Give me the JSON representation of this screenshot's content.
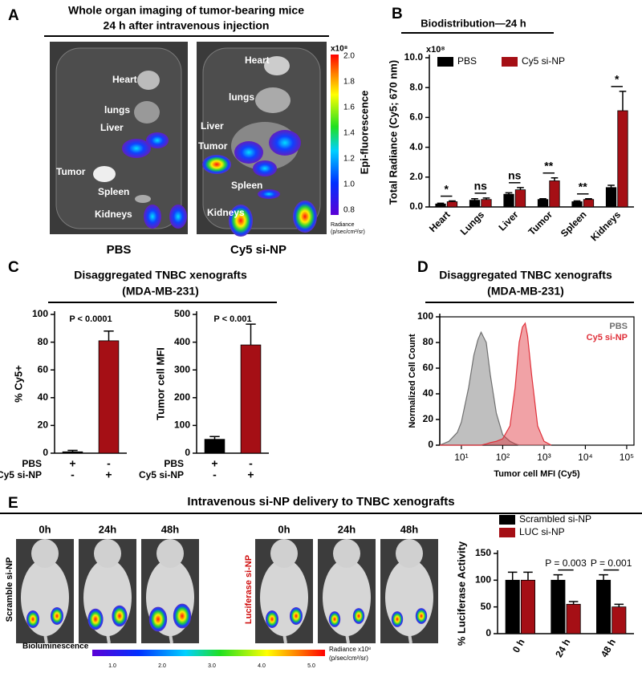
{
  "panel_letters": [
    "A",
    "B",
    "C",
    "D",
    "E"
  ],
  "panel_a": {
    "title": [
      "Whole organ imaging of tumor-bearing mice",
      "24 h after intravenous injection"
    ],
    "images": [
      {
        "caption": "PBS",
        "organs": [
          "Heart",
          "lungs",
          "Liver",
          "Tumor",
          "Spleen",
          "Kidneys"
        ]
      },
      {
        "caption": "Cy5 si-NP",
        "organs": [
          "Heart",
          "lungs",
          "Liver",
          "Tumor",
          "Spleen",
          "Kidneys"
        ]
      }
    ],
    "colorbar": {
      "unit": "x10⁸",
      "ticks": [
        "2.0",
        "1.8",
        "1.6",
        "1.4",
        "1.2",
        "1.0",
        "0.8"
      ],
      "label": "Epi-fluorescence",
      "radiance": [
        "Radiance",
        "(p/sec/cm²/sr)"
      ]
    }
  },
  "panel_c": {
    "title": "Disaggregated TNBC xenografts",
    "subtitle": "(MDA-MB-231)"
  },
  "panel_e": {
    "title": "Intravenous si-NP delivery to TNBC xenografts",
    "groups": [
      {
        "label": "Scramble si-NP",
        "times": [
          "0h",
          "24h",
          "48h"
        ]
      },
      {
        "label": "Luciferase si-NP",
        "times": [
          "0h",
          "24h",
          "48h"
        ]
      }
    ],
    "colorbar": {
      "label": "Bioluminescence",
      "ticks": [
        "1.0",
        "2.0",
        "3.0",
        "4.0",
        "5.0"
      ],
      "radiance": [
        "Radiance x10⁸",
        "(p/sec/cm²/sr)"
      ]
    }
  },
  "chart_data": [
    {
      "type": "bar",
      "title": "Biodistribution—24 h",
      "ylabel": "Total Radiance (Cy5; 670 nm)",
      "y_multiplier": "x10⁸",
      "categories": [
        "Heart",
        "Lungs",
        "Liver",
        "Tumor",
        "Spleen",
        "Kidneys"
      ],
      "series": [
        {
          "name": "PBS",
          "color": "#000000",
          "values": [
            0.2,
            0.45,
            0.85,
            0.5,
            0.35,
            1.3
          ],
          "errors": [
            0.05,
            0.1,
            0.1,
            0.05,
            0.05,
            0.15
          ]
        },
        {
          "name": "Cy5 si-NP",
          "color": "#a50f15",
          "values": [
            0.35,
            0.5,
            1.15,
            1.75,
            0.5,
            6.45
          ],
          "errors": [
            0.05,
            0.1,
            0.15,
            0.2,
            0.05,
            1.3
          ]
        }
      ],
      "annotations": [
        "*",
        "ns",
        "ns",
        "**",
        "**",
        "*"
      ],
      "ylim": [
        0,
        10
      ],
      "yticks": [
        {
          "value": 0,
          "label": "0.0"
        },
        {
          "value": 2,
          "label": "2.0"
        },
        {
          "value": 4,
          "label": "4.0"
        },
        {
          "value": 6,
          "label": "6.0"
        },
        {
          "value": 8,
          "label": "8.0"
        },
        {
          "value": 10,
          "label": "10.0"
        }
      ],
      "legend": "top"
    },
    {
      "type": "bar",
      "ylabel": "% Cy5+",
      "category_rows": [
        {
          "name": "PBS",
          "labels": [
            "+",
            "-"
          ]
        },
        {
          "name": "Cy5 si-NP",
          "labels": [
            "-",
            "+"
          ]
        }
      ],
      "values": [
        1,
        81
      ],
      "errors": [
        1,
        7
      ],
      "colors": [
        "#000000",
        "#a50f15"
      ],
      "annotation": "P < 0.0001",
      "ylim": [
        0,
        100
      ],
      "yticks": [
        0,
        20,
        40,
        60,
        80,
        100
      ]
    },
    {
      "type": "bar",
      "ylabel": "Tumor cell MFI",
      "category_rows": [
        {
          "name": "PBS",
          "labels": [
            "+",
            "-"
          ]
        },
        {
          "name": "Cy5 si-NP",
          "labels": [
            "-",
            "+"
          ]
        }
      ],
      "values": [
        50,
        390
      ],
      "errors": [
        10,
        75
      ],
      "colors": [
        "#000000",
        "#a50f15"
      ],
      "annotation": "P < 0.001",
      "ylim": [
        0,
        500
      ],
      "yticks": [
        0,
        100,
        200,
        300,
        400,
        500
      ]
    },
    {
      "type": "line",
      "title": "Disaggregated TNBC xenografts",
      "subtitle": "(MDA-MB-231)",
      "xlabel": "Tumor cell MFI (Cy5)",
      "ylabel": "Normalized Cell Count",
      "x": [
        3,
        5,
        8,
        10,
        15,
        20,
        25,
        30,
        40,
        50,
        70,
        100,
        150,
        200,
        250,
        300,
        350,
        400,
        500,
        700,
        1000,
        1500
      ],
      "series": [
        {
          "name": "PBS",
          "color": "#707070",
          "values": [
            0,
            3,
            10,
            18,
            45,
            70,
            82,
            88,
            80,
            55,
            25,
            8,
            3,
            1,
            0,
            0,
            0,
            0,
            0,
            0,
            0,
            0
          ]
        },
        {
          "name": "Cy5 si-NP",
          "color": "#e0303a",
          "values": [
            0,
            0,
            0,
            0,
            0,
            0,
            0,
            0,
            1,
            2,
            3,
            5,
            15,
            45,
            80,
            92,
            95,
            85,
            55,
            15,
            3,
            0
          ]
        }
      ],
      "log_x": true,
      "xlim": [
        3,
        150000
      ],
      "xticks": [
        {
          "value": 10,
          "label": "10¹"
        },
        {
          "value": 100,
          "label": "10²"
        },
        {
          "value": 1000,
          "label": "10³"
        },
        {
          "value": 10000,
          "label": "10⁴"
        },
        {
          "value": 100000,
          "label": "10⁵"
        }
      ],
      "ylim": [
        0,
        100
      ],
      "yticks": [
        0,
        20,
        40,
        60,
        80,
        100
      ],
      "legend": "top-right"
    },
    {
      "type": "bar",
      "ylabel": "% Luciferase Activity",
      "categories": [
        "0 h",
        "24 h",
        "48 h"
      ],
      "series": [
        {
          "name": "Scrambled si-NP",
          "color": "#000000",
          "values": [
            100,
            100,
            100
          ],
          "errors": [
            15,
            10,
            10
          ]
        },
        {
          "name": "LUC si-NP",
          "color": "#a50f15",
          "values": [
            100,
            55,
            50
          ],
          "errors": [
            15,
            5,
            5
          ]
        }
      ],
      "annotations": [
        null,
        "P = 0.003",
        "P = 0.001"
      ],
      "ylim": [
        0,
        150
      ],
      "yticks": [
        0,
        50,
        100,
        150
      ],
      "legend": "top"
    }
  ]
}
